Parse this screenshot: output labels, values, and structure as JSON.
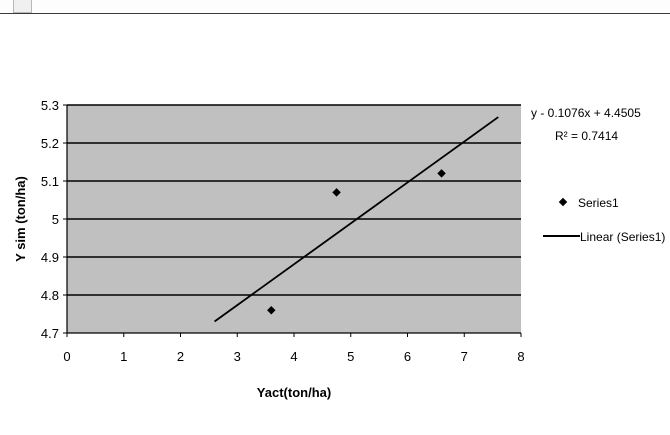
{
  "chart_data": {
    "type": "scatter",
    "title": "",
    "xlabel": "Yact(ton/ha)",
    "ylabel": "Y sim (ton/ha)",
    "xlim": [
      0,
      8
    ],
    "ylim": [
      4.7,
      5.3
    ],
    "x_ticks": [
      "0",
      "1",
      "2",
      "3",
      "4",
      "5",
      "6",
      "7",
      "8"
    ],
    "y_ticks": [
      "4.7",
      "4.8",
      "4.9",
      "5",
      "5.1",
      "5.2",
      "5.3"
    ],
    "grid": "horizontal major lines",
    "plot_background": "#c0c0c0",
    "series": [
      {
        "name": "Series1",
        "marker": "diamond",
        "color": "#000000",
        "points": [
          {
            "x": 3.6,
            "y": 4.76
          },
          {
            "x": 4.75,
            "y": 5.07
          },
          {
            "x": 6.6,
            "y": 5.12
          }
        ]
      }
    ],
    "trendline": {
      "name": "Linear (Series1)",
      "type": "linear",
      "slope": 0.1076,
      "intercept": 4.4505,
      "x_range": [
        2.6,
        7.6
      ],
      "equation": "y - 0.1076x + 4.4505",
      "r_squared": "R² = 0.7414"
    },
    "legend": {
      "position": "right",
      "entries": [
        {
          "label": "Series1",
          "symbol": "diamond"
        },
        {
          "label": "Linear (Series1)",
          "symbol": "line"
        }
      ]
    }
  }
}
